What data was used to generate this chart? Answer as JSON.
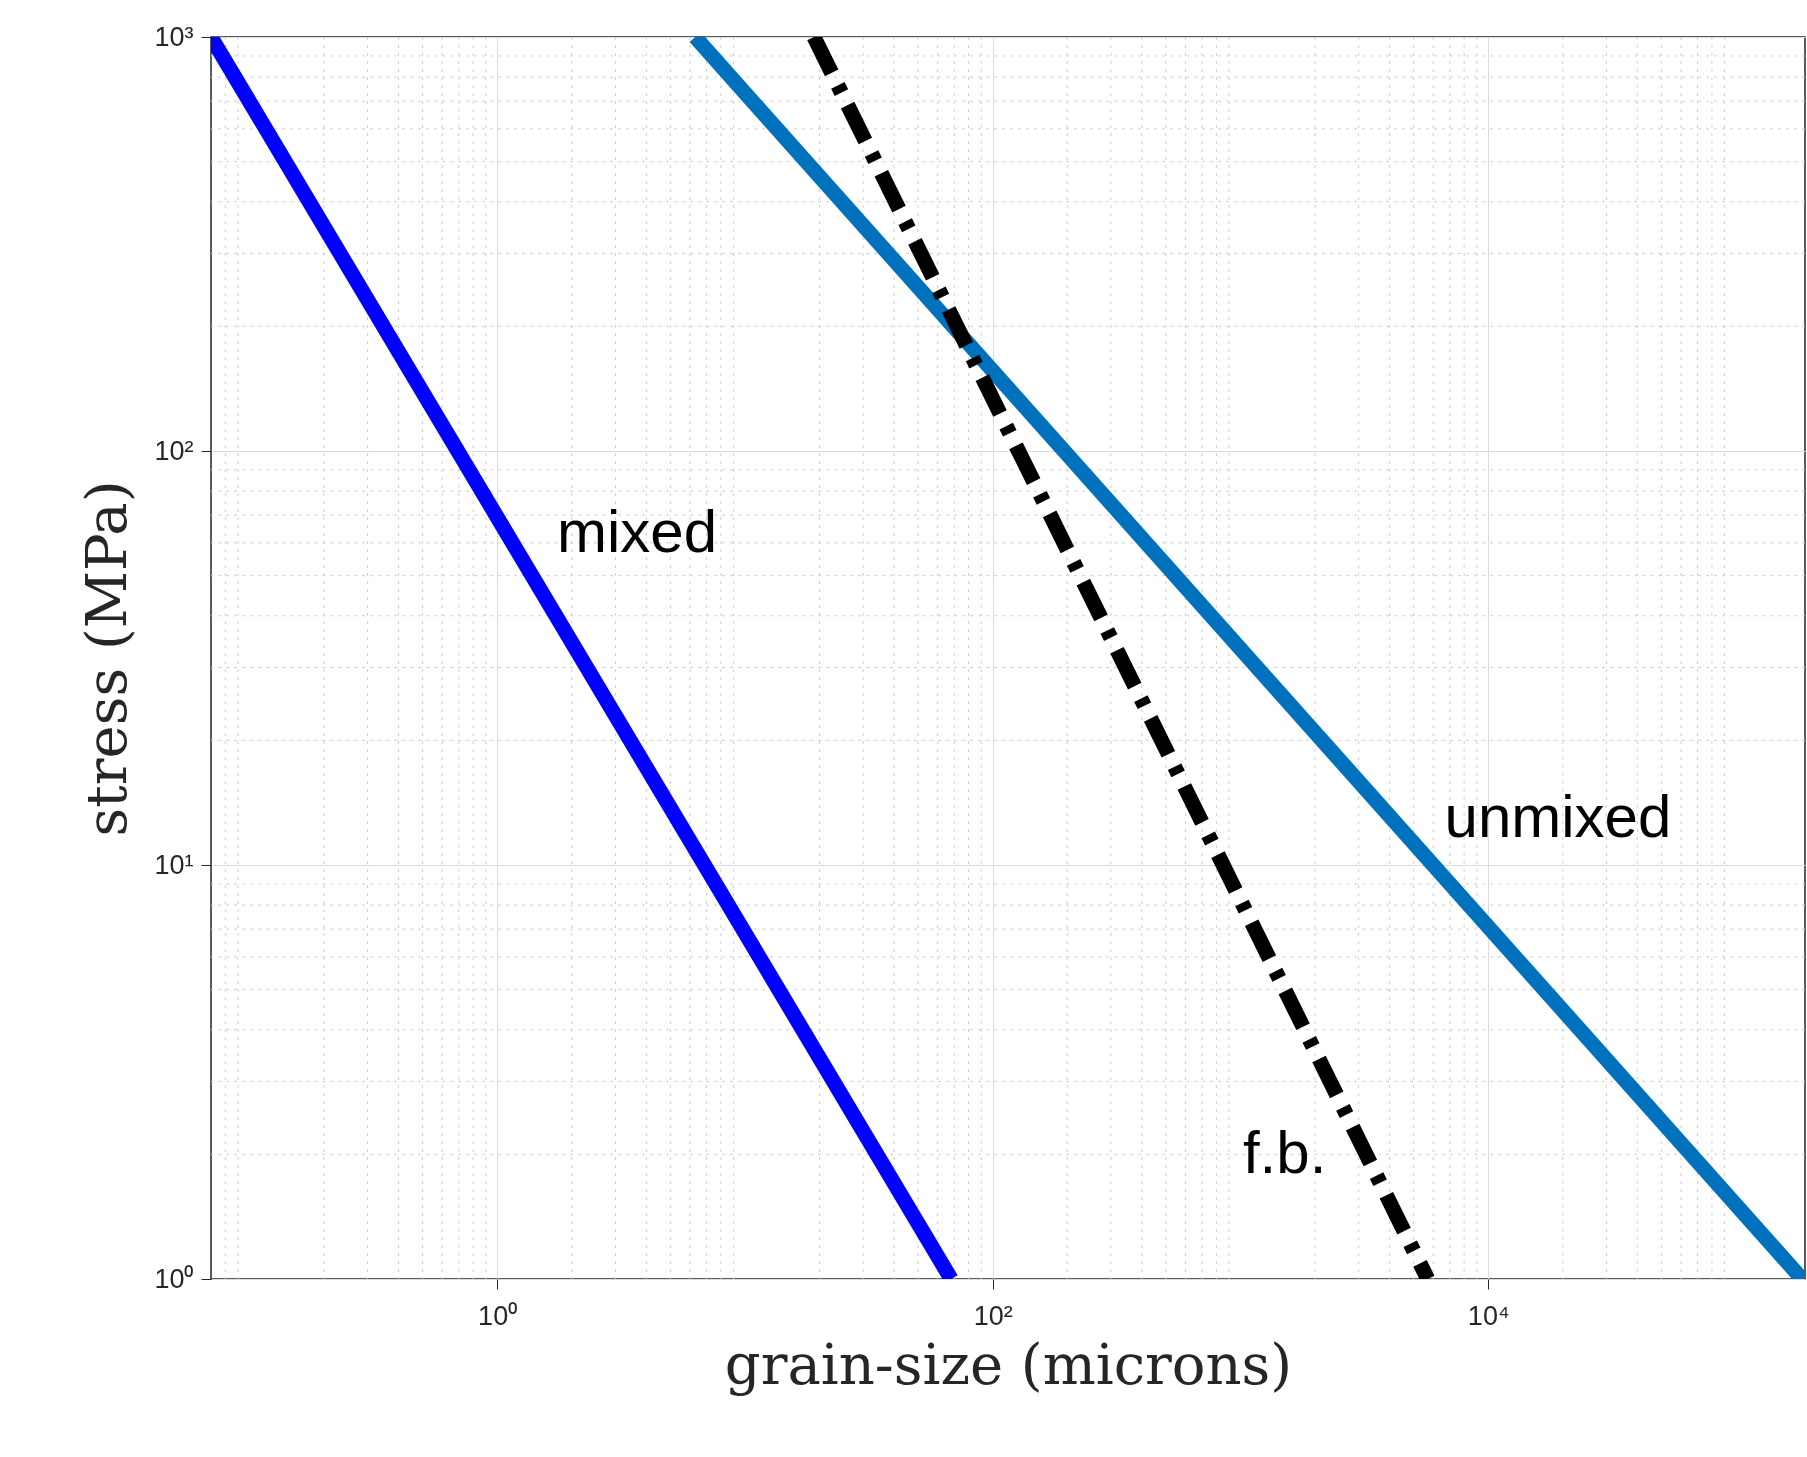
{
  "chart_data": {
    "type": "line",
    "xlabel": "grain-size (microns)",
    "ylabel": "stress (MPa)",
    "log": "xy",
    "grid": true,
    "xlim": [
      0.07,
      190000
    ],
    "ylim": [
      1,
      1000
    ],
    "xticks": [
      {
        "value": 1,
        "label": "10⁰"
      },
      {
        "value": 100,
        "label": "10²"
      },
      {
        "value": 10000,
        "label": "10⁴"
      }
    ],
    "yticks": [
      {
        "value": 1,
        "label": "10⁰"
      },
      {
        "value": 10,
        "label": "10¹"
      },
      {
        "value": 100,
        "label": "10²"
      },
      {
        "value": 1000,
        "label": "10³"
      }
    ],
    "series": [
      {
        "name": "mixed",
        "color": "#0000ff",
        "line_style": "solid",
        "x": [
          0.07,
          68
        ],
        "values": [
          1000,
          1
        ]
      },
      {
        "name": "unmixed",
        "color": "#0072bd",
        "line_style": "solid",
        "x": [
          6.3,
          185000
        ],
        "values": [
          1000,
          1
        ]
      },
      {
        "name": "f.b.",
        "color": "#000000",
        "line_style": "dashed",
        "x": [
          19,
          5700
        ],
        "values": [
          1000,
          1
        ]
      }
    ]
  }
}
